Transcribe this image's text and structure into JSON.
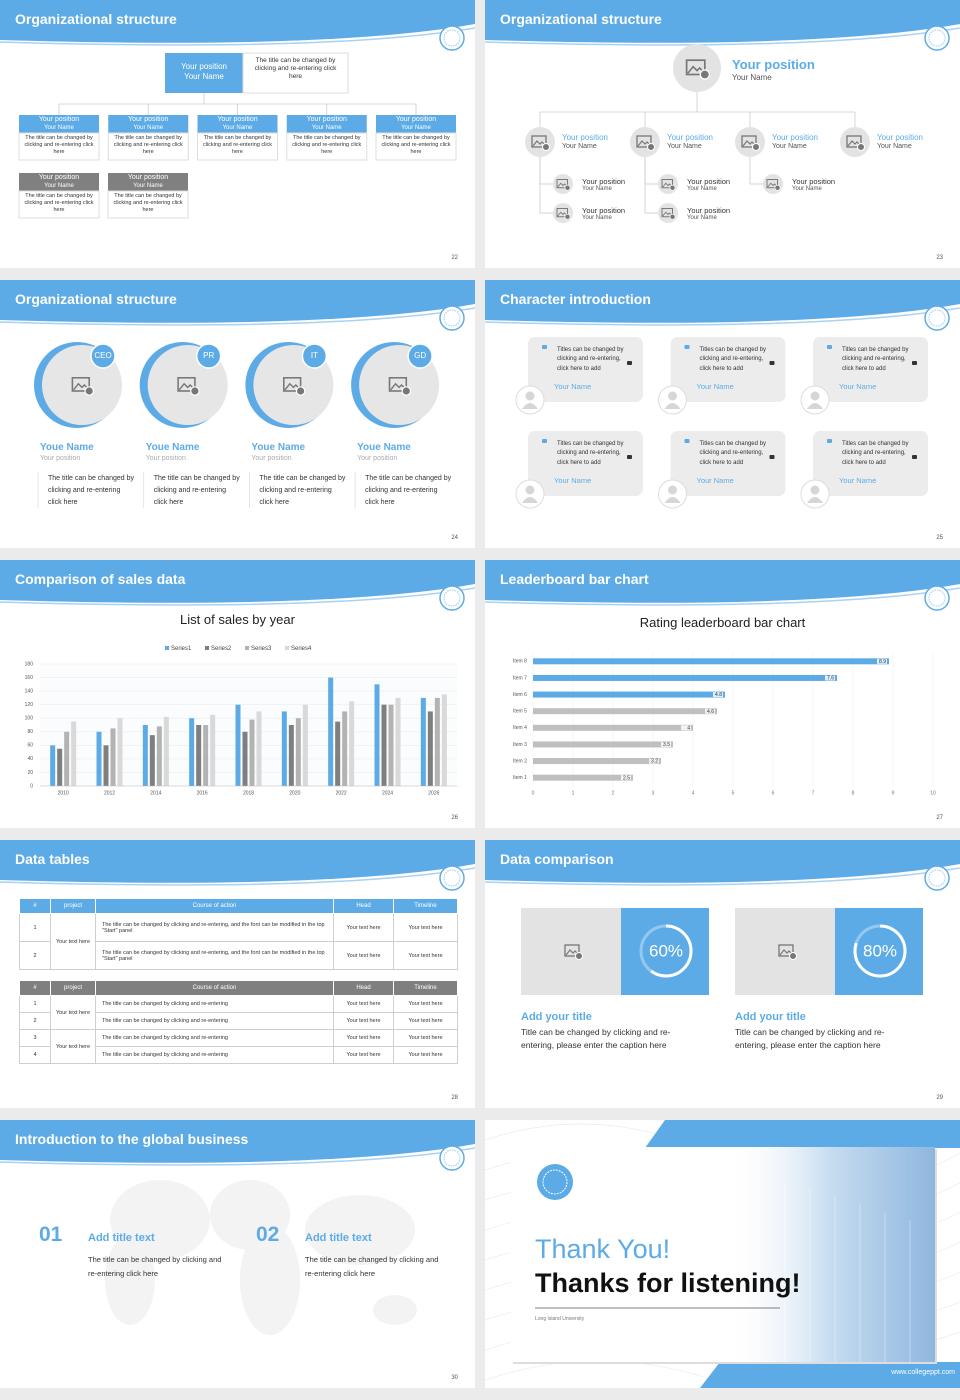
{
  "slides": [
    {
      "title": "Organizational structure",
      "page": "22",
      "top": {
        "position": "Your position",
        "name": "Your Name",
        "note": "The title can be changed by clicking and re-entering click here"
      },
      "boxes": [
        {
          "position": "Your position",
          "name": "Your Name",
          "text": "The title can be changed by clicking and re-entering click here"
        },
        {
          "position": "Your position",
          "name": "Your Name",
          "text": "The title can be changed by clicking and re-entering click here"
        },
        {
          "position": "Your position",
          "name": "Your Name",
          "text": "The title can be changed by clicking and re-entering click here"
        },
        {
          "position": "Your position",
          "name": "Your Name",
          "text": "The title can be changed by clicking and re-entering click here"
        },
        {
          "position": "Your position",
          "name": "Your Name",
          "text": "The title can be changed by clicking and re-entering click here"
        },
        {
          "position": "Your position",
          "name": "Your Name",
          "text": "The title can be changed by clicking and re-entering click here"
        },
        {
          "position": "Your position",
          "name": "Your Name",
          "text": "The title can be changed by clicking and re-entering click here"
        }
      ]
    },
    {
      "title": "Organizational structure",
      "page": "23",
      "top": {
        "position": "Your position",
        "name": "Your Name"
      },
      "nodes": [
        {
          "position": "Your position",
          "name": "Your Name"
        },
        {
          "position": "Your position",
          "name": "Your Name"
        },
        {
          "position": "Your position",
          "name": "Your Name"
        },
        {
          "position": "Your position",
          "name": "Your Name"
        }
      ],
      "subnodes": [
        {
          "position": "Your position",
          "name": "Your Name"
        },
        {
          "position": "Your position",
          "name": "Your Name"
        },
        {
          "position": "Your position",
          "name": "Your Name"
        },
        {
          "position": "Your position",
          "name": "Your Name"
        },
        {
          "position": "Your position",
          "name": "Your Name"
        }
      ]
    },
    {
      "title": "Organizational structure",
      "page": "24",
      "members": [
        {
          "tag": "CEO",
          "name": "Youe Name",
          "position": "Your position",
          "text": "The title can be changed by clicking and re-entering click here"
        },
        {
          "tag": "PR",
          "name": "Youe Name",
          "position": "Your position",
          "text": "The title can be changed by clicking and re-entering click here"
        },
        {
          "tag": "IT",
          "name": "Youe Name",
          "position": "Your position",
          "text": "The title can be changed by clicking and re-entering click here"
        },
        {
          "tag": "GD",
          "name": "Youe Name",
          "position": "Your position",
          "text": "The title can be changed by clicking and re-entering click here"
        }
      ]
    },
    {
      "title": "Character introduction",
      "page": "25",
      "cards": [
        {
          "text": "Titles can be changed by clicking and re-entering, click here to add",
          "name": "Your Name"
        },
        {
          "text": "Titles can be changed by clicking and re-entering, click here to add",
          "name": "Your Name"
        },
        {
          "text": "Titles can be changed by clicking and re-entering, click here to add",
          "name": "Your Name"
        },
        {
          "text": "Titles can be changed by clicking and re-entering, click here to add",
          "name": "Your Name"
        },
        {
          "text": "Titles can be changed by clicking and re-entering, click here to add",
          "name": "Your Name"
        },
        {
          "text": "Titles can be changed by clicking and re-entering, click here to add",
          "name": "Your Name"
        }
      ]
    },
    {
      "title": "Comparison of sales data",
      "page": "26",
      "chart_data": {
        "type": "bar",
        "title": "List of sales by year",
        "categories": [
          "2010",
          "2012",
          "2014",
          "2016",
          "2018",
          "2020",
          "2022",
          "2024",
          "2026"
        ],
        "series": [
          {
            "name": "Series1",
            "color": "#5dabe6",
            "values": [
              60,
              80,
              90,
              100,
              120,
              110,
              160,
              150,
              130
            ]
          },
          {
            "name": "Series2",
            "color": "#7f7f7f",
            "values": [
              55,
              60,
              75,
              90,
              80,
              90,
              95,
              120,
              110
            ]
          },
          {
            "name": "Series3",
            "color": "#b3b3b3",
            "values": [
              80,
              85,
              88,
              90,
              98,
              100,
              110,
              120,
              130
            ]
          },
          {
            "name": "Series4",
            "color": "#d9d9d9",
            "values": [
              95,
              100,
              102,
              105,
              110,
              120,
              125,
              130,
              135
            ]
          }
        ],
        "ylim": [
          0,
          180
        ],
        "yticks": [
          0,
          20,
          40,
          60,
          80,
          100,
          120,
          140,
          160,
          180
        ],
        "grid": true
      }
    },
    {
      "title": "Leaderboard bar chart",
      "page": "27",
      "chart_data": {
        "type": "barh",
        "title": "Rating leaderboard bar chart",
        "categories": [
          "Item 1",
          "Item 2",
          "Item 3",
          "Item 4",
          "Item 5",
          "Item 6",
          "Item 7",
          "Item 8"
        ],
        "values": [
          2.5,
          3.2,
          3.5,
          4,
          4.6,
          4.8,
          7.6,
          8.9
        ],
        "colors": [
          "#bfbfbf",
          "#bfbfbf",
          "#bfbfbf",
          "#bfbfbf",
          "#bfbfbf",
          "#5dabe6",
          "#5dabe6",
          "#5dabe6"
        ],
        "xlim": [
          0,
          10
        ],
        "xticks": [
          0,
          1,
          2,
          3,
          4,
          5,
          6,
          7,
          8,
          9,
          10
        ],
        "grid": true
      }
    },
    {
      "title": "Data tables",
      "page": "28",
      "tables": [
        {
          "color": "#5dabe6",
          "header": [
            "#",
            "project",
            "Course of action",
            "Head",
            "Timeline"
          ],
          "groups": [
            {
              "project": "Your text here",
              "rows": [
                [
                  "1",
                  "The title can be changed by clicking and re-entering, and the font can be modified in the top \"Start\" panel",
                  "Your text here",
                  "Your text here"
                ],
                [
                  "2",
                  "The title can be changed by clicking and re-entering, and the font can be modified in the top \"Start\" panel",
                  "Your text here",
                  "Your text here"
                ]
              ]
            }
          ]
        },
        {
          "color": "#7f7f7f",
          "header": [
            "#",
            "project",
            "Course of action",
            "Head",
            "Timeline"
          ],
          "groups": [
            {
              "project": "Your text here",
              "rows": [
                [
                  "1",
                  "The title can be changed by clicking and re-entering",
                  "Your text here",
                  "Your text here"
                ],
                [
                  "2",
                  "The title can be changed by clicking and re-entering",
                  "Your text here",
                  "Your text here"
                ]
              ]
            },
            {
              "project": "Your text here",
              "rows": [
                [
                  "3",
                  "The title can be changed by clicking and re-entering",
                  "Your text here",
                  "Your text here"
                ],
                [
                  "4",
                  "The title can be changed by clicking and re-entering",
                  "Your text here",
                  "Your text here"
                ]
              ]
            }
          ]
        }
      ]
    },
    {
      "title": "Data comparison",
      "page": "29",
      "gauges": [
        {
          "value": 60,
          "value_label": "60%",
          "title": "Add your title",
          "text": "Title can be changed by clicking and re-entering, please enter the caption here"
        },
        {
          "value": 80,
          "value_label": "80%",
          "title": "Add your title",
          "text": "Title can be changed by clicking and re-entering, please enter the caption here"
        }
      ]
    },
    {
      "title": "Introduction to the global business",
      "page": "30",
      "points": [
        {
          "number": "01",
          "title": "Add title text",
          "text": "The title can be changed by clicking and re-entering click here"
        },
        {
          "number": "02",
          "title": "Add title text",
          "text": "The title can be changed by clicking and re-entering click here"
        }
      ]
    },
    {
      "title": "Thank You!",
      "subtitle": "Thanks for listening!",
      "university": "Long Island University",
      "website": "www.collegeppt.com"
    }
  ]
}
